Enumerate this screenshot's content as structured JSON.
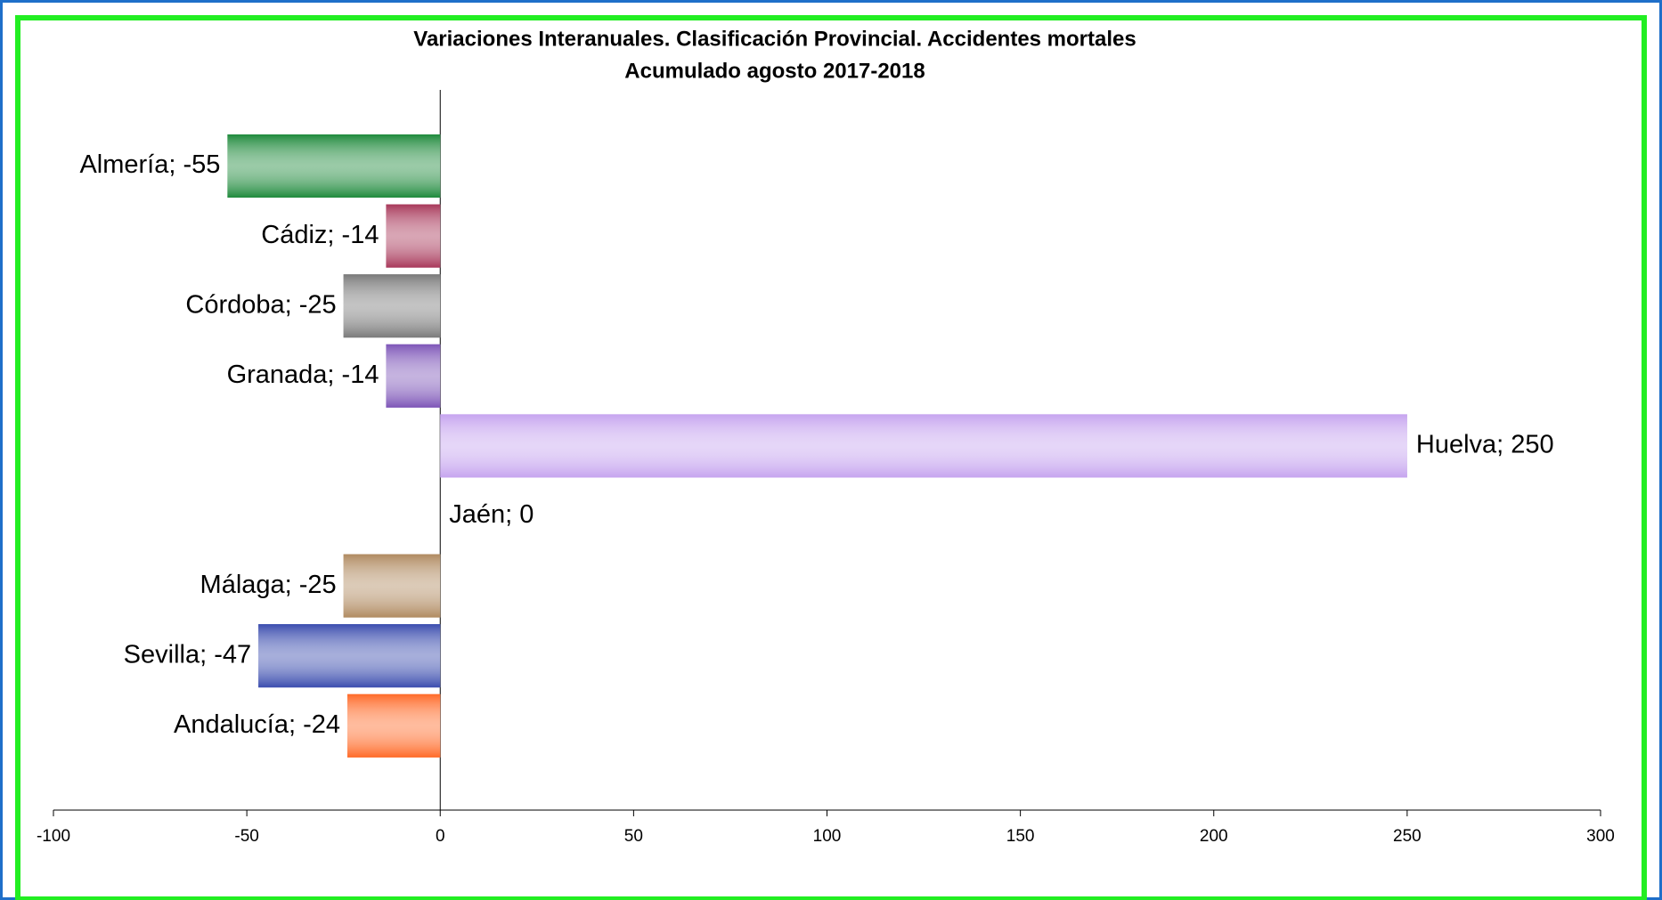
{
  "chart_data": {
    "type": "bar",
    "orientation": "horizontal",
    "title": "Variaciones Interanuales. Clasificación Provincial. Accidentes mortales",
    "subtitle": "Acumulado agosto 2017-2018",
    "values": [
      -55,
      -14,
      -25,
      -14,
      250,
      0,
      -25,
      -47,
      -24
    ],
    "value_labels": [
      "Almería; -55",
      "Cádiz; -14",
      "Córdoba; -25",
      "Granada; -14",
      "Huelva; 250",
      "Jaén; 0",
      "Málaga; -25",
      "Sevilla; -47",
      "Andalucía; -24"
    ],
    "colors": [
      "#1f8a3c",
      "#a8385a",
      "#7a7a7a",
      "#7e56b8",
      "#c6a4ef",
      "#cccccc",
      "#b08a60",
      "#3a4cae",
      "#ff6a28"
    ],
    "xlim": [
      -100,
      300
    ],
    "xticks": [
      -100,
      -50,
      0,
      50,
      100,
      150,
      200,
      250,
      300
    ],
    "grid": false
  }
}
